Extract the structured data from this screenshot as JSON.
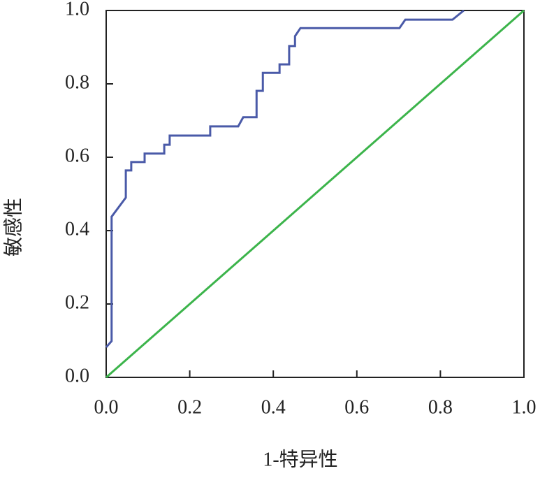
{
  "chart_data": {
    "type": "line",
    "xlabel": "1-特异性",
    "ylabel": "敏感性",
    "xlim": [
      0,
      1
    ],
    "ylim": [
      0,
      1
    ],
    "xticks": [
      {
        "value": 0,
        "label": "0.0"
      },
      {
        "value": 0.2,
        "label": "0.2"
      },
      {
        "value": 0.4,
        "label": "0.4"
      },
      {
        "value": 0.6,
        "label": "0.6"
      },
      {
        "value": 0.8,
        "label": "0.8"
      },
      {
        "value": 1,
        "label": "1.0"
      }
    ],
    "yticks": [
      {
        "value": 0,
        "label": "0.0"
      },
      {
        "value": 0.2,
        "label": "0.2"
      },
      {
        "value": 0.4,
        "label": "0.4"
      },
      {
        "value": 0.6,
        "label": "0.6"
      },
      {
        "value": 0.8,
        "label": "0.8"
      },
      {
        "value": 1,
        "label": "1.0"
      }
    ],
    "series": [
      {
        "color": "#4a5aa8",
        "x": [
          0,
          0.013,
          0.013,
          0.047,
          0.047,
          0.06,
          0.06,
          0.092,
          0.092,
          0.139,
          0.139,
          0.152,
          0.152,
          0.249,
          0.249,
          0.316,
          0.328,
          0.36,
          0.36,
          0.375,
          0.375,
          0.415,
          0.415,
          0.438,
          0.438,
          0.452,
          0.452,
          0.465,
          0.702,
          0.716,
          0.829,
          0.856
        ],
        "y": [
          0.082,
          0.099,
          0.438,
          0.49,
          0.564,
          0.564,
          0.587,
          0.587,
          0.61,
          0.61,
          0.634,
          0.634,
          0.659,
          0.659,
          0.684,
          0.684,
          0.709,
          0.709,
          0.781,
          0.781,
          0.83,
          0.83,
          0.853,
          0.853,
          0.903,
          0.903,
          0.93,
          0.952,
          0.952,
          0.975,
          0.975,
          1
        ]
      },
      {
        "color": "#3cb44b",
        "x": [
          0,
          1
        ],
        "y": [
          0,
          1
        ]
      }
    ]
  }
}
